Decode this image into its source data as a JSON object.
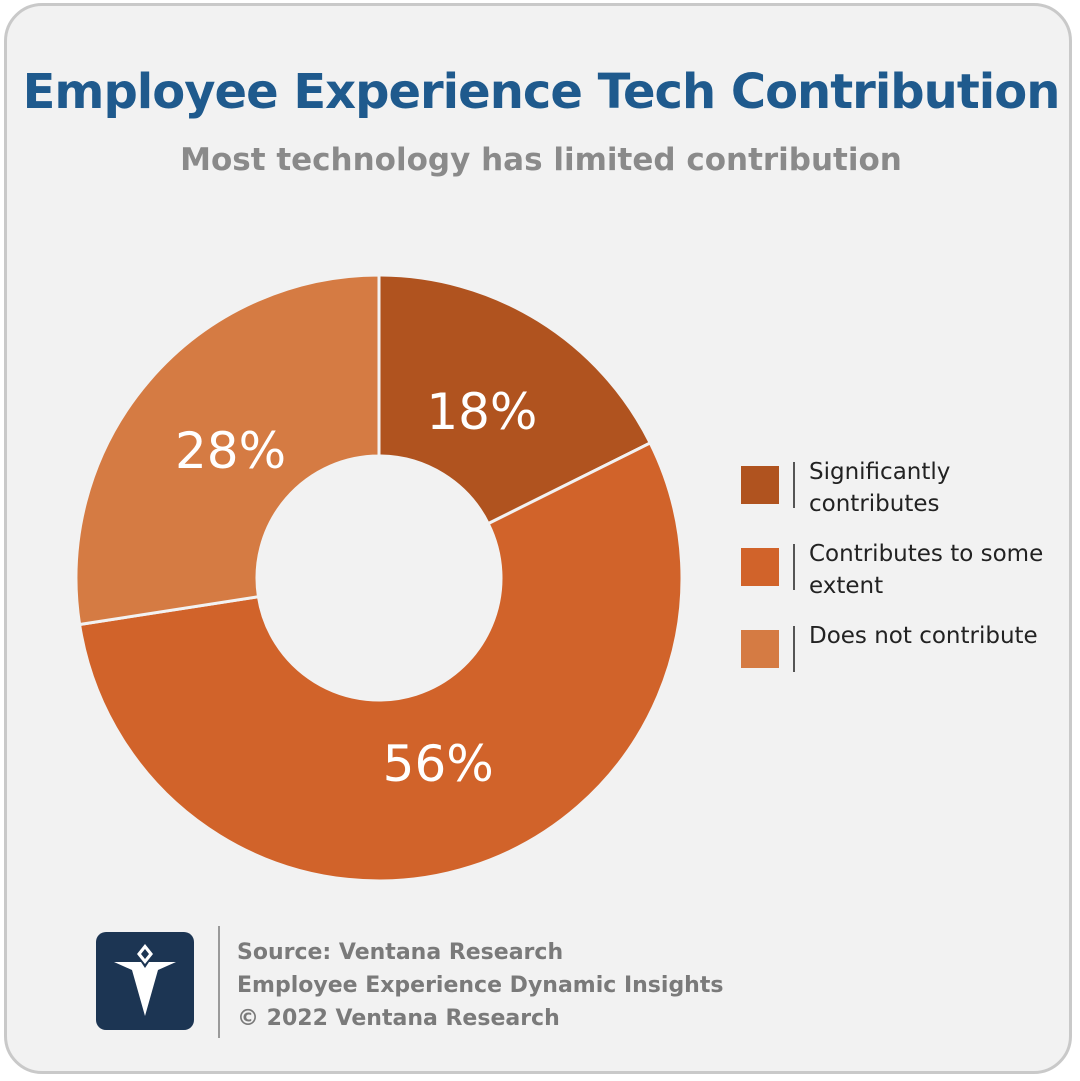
{
  "header": {
    "title": "Employee Experience Tech Contribution",
    "subtitle": "Most technology has limited contribution"
  },
  "chart_data": {
    "type": "pie",
    "variant": "donut",
    "title": "Employee Experience Tech Contribution",
    "subtitle": "Most technology has limited contribution",
    "categories": [
      "Significantly contributes",
      "Contributes to some extent",
      "Does not contribute"
    ],
    "values": [
      18,
      56,
      28
    ],
    "value_labels": [
      "18%",
      "56%",
      "28%"
    ],
    "colors": [
      "#b0531f",
      "#d1632a",
      "#d57b43"
    ],
    "legend_placement": "right",
    "start": "12 o'clock, clockwise"
  },
  "legend": {
    "items": [
      {
        "label": "Significantly contributes",
        "color": "#b0531f"
      },
      {
        "label": "Contributes to some extent",
        "color": "#d1632a"
      },
      {
        "label": "Does not contribute",
        "color": "#d57b43"
      }
    ]
  },
  "footer": {
    "source": "Source: Ventana Research",
    "report": "Employee Experience Dynamic Insights",
    "copyright": "© 2022 Ventana Research",
    "logo_icon": "ventana-v-logo-icon"
  }
}
